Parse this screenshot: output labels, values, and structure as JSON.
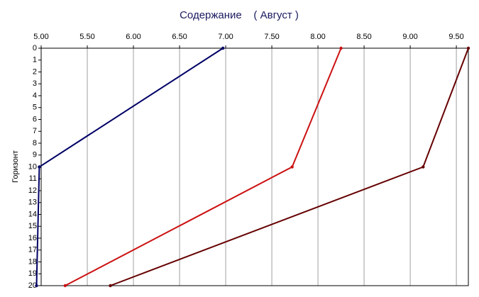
{
  "chart_data": {
    "type": "line",
    "title": "Содержание    ( Август )",
    "y_label": "Горизонт",
    "y": [
      0,
      10,
      20
    ],
    "series": [
      {
        "color": "#000066",
        "values": [
          6.97,
          4.98,
          4.95
        ]
      },
      {
        "color": "#cc1111",
        "values": [
          8.25,
          7.72,
          5.26
        ]
      },
      {
        "color": "#660000",
        "values": [
          9.63,
          9.14,
          5.75
        ]
      }
    ],
    "xlim": [
      5.0,
      9.63
    ],
    "xticks": [
      {
        "value": 5.0,
        "label": "5.00"
      },
      {
        "value": 5.5,
        "label": "5.50"
      },
      {
        "value": 6.0,
        "label": "6.00"
      },
      {
        "value": 6.5,
        "label": "6.50"
      },
      {
        "value": 7.0,
        "label": "7.00"
      },
      {
        "value": 7.5,
        "label": "7.50"
      },
      {
        "value": 8.0,
        "label": "8.00"
      },
      {
        "value": 8.5,
        "label": "8.50"
      },
      {
        "value": 9.0,
        "label": "9.00"
      },
      {
        "value": 9.5,
        "label": "9.50"
      }
    ],
    "ylim": [
      0,
      20
    ],
    "y_inverted": true,
    "yticks": [
      0,
      1,
      2,
      3,
      4,
      5,
      6,
      7,
      8,
      9,
      10,
      11,
      12,
      13,
      14,
      15,
      16,
      17,
      18,
      19,
      20
    ],
    "grid": true
  }
}
